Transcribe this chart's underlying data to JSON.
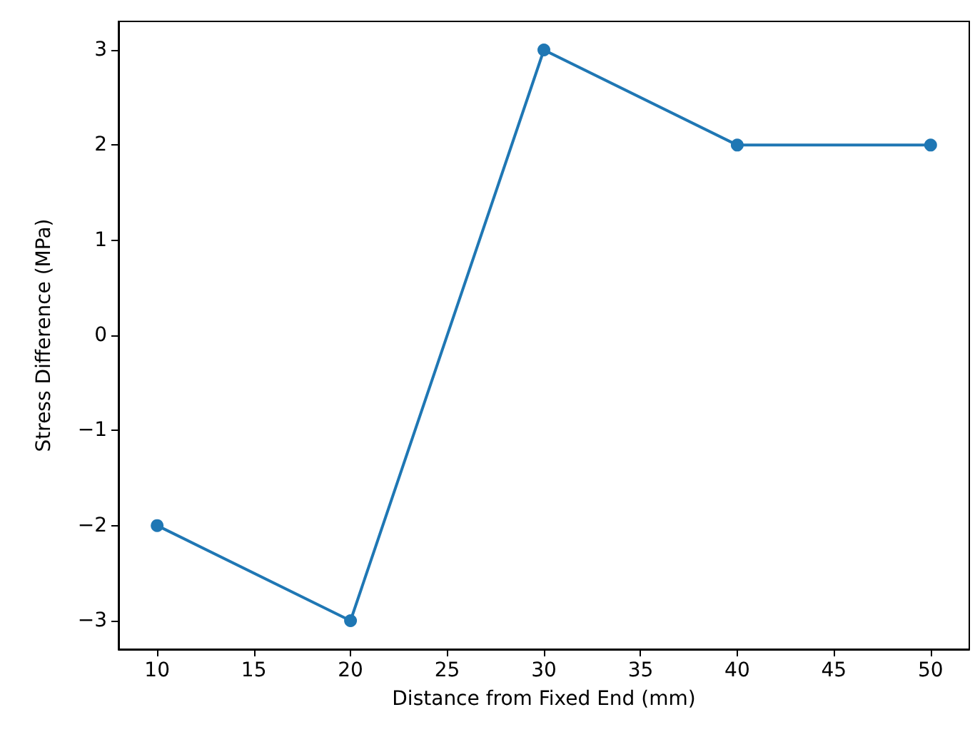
{
  "chart_data": {
    "type": "line",
    "xlabel": "Distance from Fixed End (mm)",
    "ylabel": "Stress Difference (MPa)",
    "x": [
      10,
      20,
      30,
      40,
      50
    ],
    "series": [
      {
        "color": "#1f77b4",
        "values": [
          -2,
          -3,
          3,
          2,
          2
        ]
      }
    ],
    "xlim": [
      8,
      52
    ],
    "xticks": [
      10,
      15,
      20,
      25,
      30,
      35,
      40,
      45,
      50
    ],
    "ylim": [
      -3.3,
      3.3
    ],
    "yticks": [
      -3,
      -2,
      -1,
      0,
      1,
      2,
      3
    ],
    "marker": "circle",
    "line_style": "solid",
    "grid": false
  }
}
